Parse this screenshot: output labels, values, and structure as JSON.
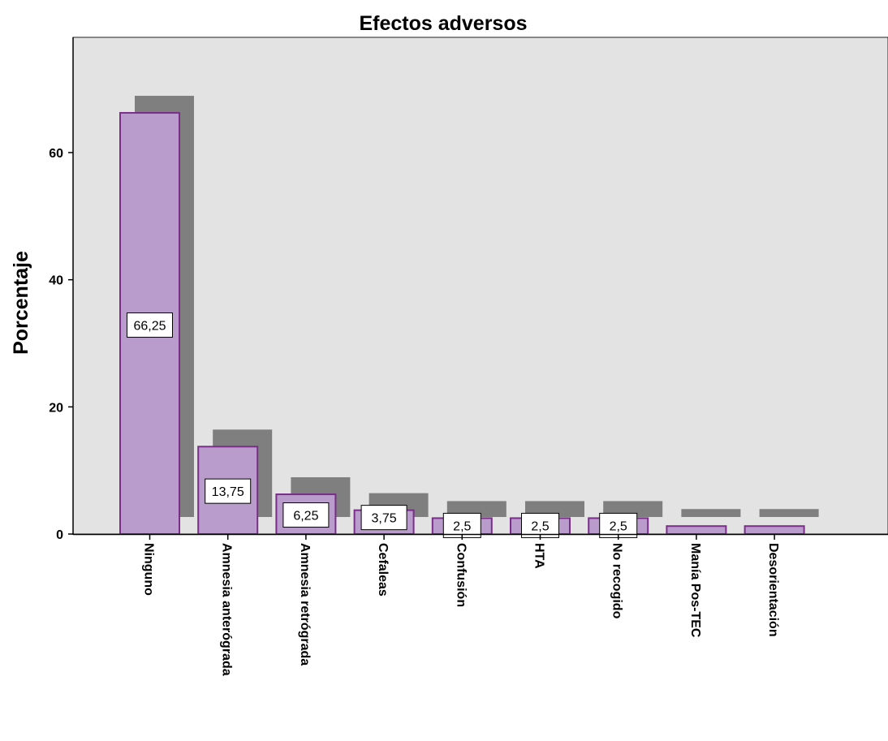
{
  "chart_data": {
    "type": "bar",
    "title": "Efectos adversos",
    "xlabel": "",
    "ylabel": "Porcentaje",
    "ylim": [
      0,
      75
    ],
    "yticks": [
      "0",
      "20",
      "40",
      "60"
    ],
    "categories": [
      "Ninguno",
      "Amnesia anterógrada",
      "Amnesia retrógrada",
      "Cefaleas",
      "Confusión",
      "HTA",
      "No recogido",
      "Manía Pos-TEC",
      "Desorientación"
    ],
    "values": [
      66.25,
      13.75,
      6.25,
      3.75,
      2.5,
      2.5,
      2.5,
      1.25,
      1.25
    ],
    "data_labels": [
      "66,25",
      "13,75",
      "6,25",
      "3,75",
      "2,5",
      "2,5",
      "2,5",
      "",
      ""
    ],
    "grid": false,
    "legend": "none",
    "style": "3d-shadow"
  },
  "colors": {
    "bar_fill": "#b99ccb",
    "bar_border": "#7a2e8a",
    "shadow": "#7f7f7f",
    "plot_background": "#e3e3e3"
  }
}
